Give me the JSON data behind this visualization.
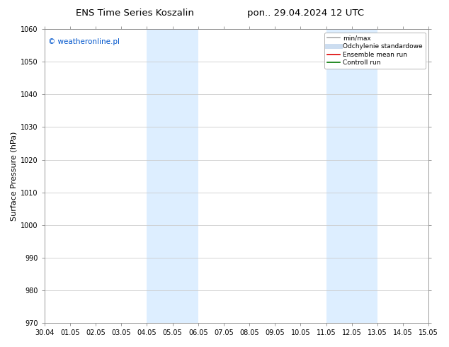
{
  "title_left": "ENS Time Series Koszalin",
  "title_right": "pon.. 29.04.2024 12 UTC",
  "ylabel": "Surface Pressure (hPa)",
  "ylim": [
    970,
    1060
  ],
  "yticks": [
    970,
    980,
    990,
    1000,
    1010,
    1020,
    1030,
    1040,
    1050,
    1060
  ],
  "xtick_labels": [
    "30.04",
    "01.05",
    "02.05",
    "03.05",
    "04.05",
    "05.05",
    "06.05",
    "07.05",
    "08.05",
    "09.05",
    "10.05",
    "11.05",
    "12.05",
    "13.05",
    "14.05",
    "15.05"
  ],
  "xlim_start": 0,
  "xlim_end": 15,
  "shaded_regions": [
    {
      "xstart": 4.0,
      "xend": 6.0
    },
    {
      "xstart": 11.0,
      "xend": 13.0
    }
  ],
  "shaded_color": "#ddeeff",
  "watermark_text": "© weatheronline.pl",
  "watermark_color": "#0055cc",
  "legend_entries": [
    {
      "label": "min/max",
      "color": "#aaaaaa",
      "lw": 1.2,
      "style": "solid"
    },
    {
      "label": "Odchylenie standardowe",
      "color": "#ccddf0",
      "lw": 5,
      "style": "solid"
    },
    {
      "label": "Ensemble mean run",
      "color": "#dd0000",
      "lw": 1.2,
      "style": "solid"
    },
    {
      "label": "Controll run",
      "color": "#007700",
      "lw": 1.2,
      "style": "solid"
    }
  ],
  "bg_color": "#ffffff",
  "plot_bg_color": "#ffffff",
  "grid_color": "#cccccc",
  "title_fontsize": 9.5,
  "tick_fontsize": 7,
  "ylabel_fontsize": 8,
  "watermark_fontsize": 7.5,
  "legend_fontsize": 6.5
}
